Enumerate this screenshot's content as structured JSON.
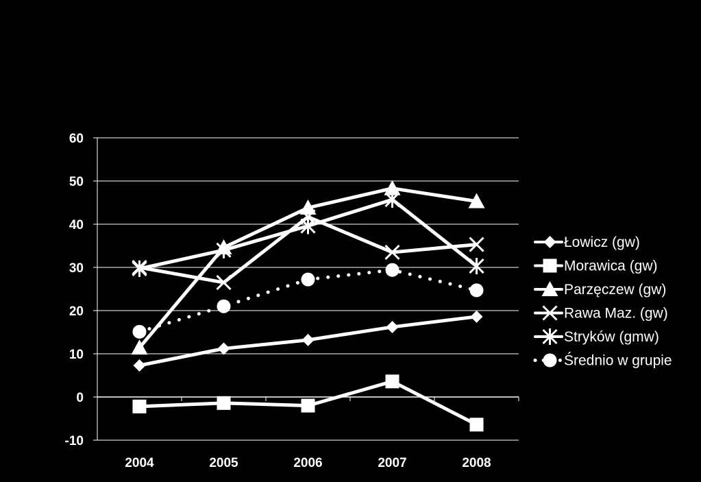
{
  "chart_data": {
    "type": "line",
    "title": "",
    "xlabel": "",
    "ylabel": "",
    "categories": [
      "2004",
      "2005",
      "2006",
      "2007",
      "2008"
    ],
    "ylim": [
      -10,
      60
    ],
    "yticks": [
      60,
      50,
      40,
      30,
      20,
      10,
      0,
      -10
    ],
    "grid": true,
    "legend_position": "right",
    "colors": {
      "background": "#000000",
      "series": "#ffffff",
      "grid": "#ffffff"
    },
    "series": [
      {
        "name": "Łowicz (gw)",
        "marker": "diamond",
        "style": "solid",
        "values": [
          7.3,
          11.2,
          13.2,
          16.2,
          18.6
        ]
      },
      {
        "name": "Morawica (gw)",
        "marker": "square",
        "style": "solid",
        "values": [
          -2.2,
          -1.4,
          -2.0,
          3.6,
          -6.4
        ]
      },
      {
        "name": "Parzęczew (gw)",
        "marker": "triangle",
        "style": "solid",
        "values": [
          11.4,
          34.6,
          43.8,
          48.3,
          45.3
        ]
      },
      {
        "name": "Rawa Maz. (gw)",
        "marker": "x",
        "style": "solid",
        "values": [
          30.0,
          26.5,
          41.7,
          33.5,
          35.3
        ]
      },
      {
        "name": "Stryków (gmw)",
        "marker": "asterisk",
        "style": "solid",
        "values": [
          29.7,
          34.0,
          39.6,
          45.7,
          30.3
        ]
      },
      {
        "name": "Średnio w grupie",
        "marker": "circle",
        "style": "dotted",
        "values": [
          15.1,
          21.0,
          27.2,
          29.4,
          24.7
        ]
      }
    ]
  }
}
